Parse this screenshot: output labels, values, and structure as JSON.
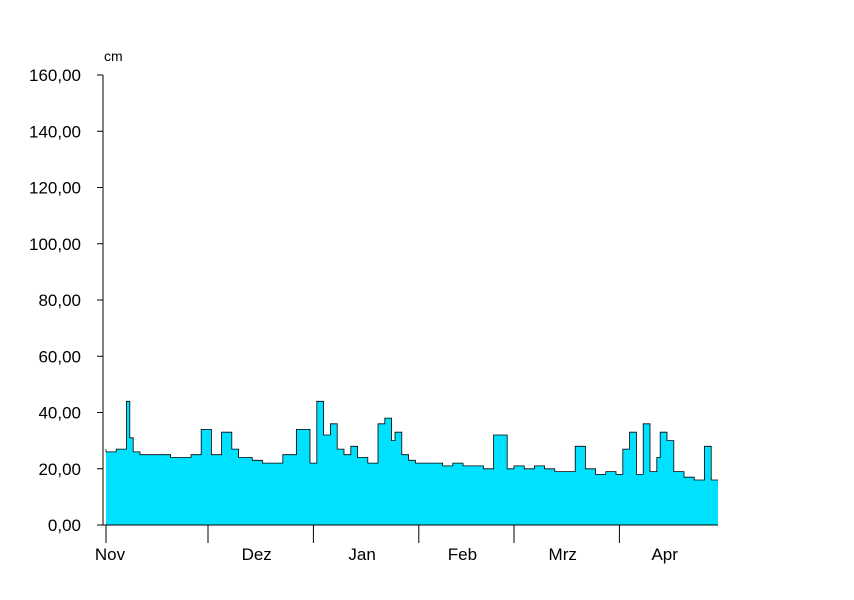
{
  "chart_data": {
    "type": "area",
    "unit": "cm",
    "ylim": [
      0,
      160
    ],
    "y_ticks": [
      {
        "value": 0,
        "label": "0,00"
      },
      {
        "value": 20,
        "label": "20,00"
      },
      {
        "value": 40,
        "label": "40,00"
      },
      {
        "value": 60,
        "label": "60,00"
      },
      {
        "value": 80,
        "label": "80,00"
      },
      {
        "value": 100,
        "label": "100,00"
      },
      {
        "value": 120,
        "label": "120,00"
      },
      {
        "value": 140,
        "label": "140,00"
      },
      {
        "value": 160,
        "label": "160,00"
      }
    ],
    "month_labels": [
      "Nov",
      "Dez",
      "Jan",
      "Feb",
      "Mrz",
      "Apr"
    ],
    "x_start": "2020-11-01",
    "x_end": "2021-04-30",
    "x_boundaries": [
      "2020-11-01",
      "2020-12-01",
      "2021-01-01",
      "2021-02-01",
      "2021-03-01",
      "2021-04-01",
      "2021-05-01"
    ],
    "x": [
      "2020-11-01",
      "2020-11-04",
      "2020-11-07",
      "2020-11-08",
      "2020-11-09",
      "2020-11-11",
      "2020-11-14",
      "2020-11-17",
      "2020-11-20",
      "2020-11-23",
      "2020-11-26",
      "2020-11-29",
      "2020-12-02",
      "2020-12-05",
      "2020-12-08",
      "2020-12-10",
      "2020-12-11",
      "2020-12-14",
      "2020-12-17",
      "2020-12-20",
      "2020-12-23",
      "2020-12-27",
      "2020-12-31",
      "2021-01-02",
      "2021-01-04",
      "2021-01-06",
      "2021-01-08",
      "2021-01-10",
      "2021-01-12",
      "2021-01-14",
      "2021-01-17",
      "2021-01-20",
      "2021-01-22",
      "2021-01-24",
      "2021-01-25",
      "2021-01-27",
      "2021-01-29",
      "2021-01-31",
      "2021-02-02",
      "2021-02-05",
      "2021-02-08",
      "2021-02-11",
      "2021-02-14",
      "2021-02-17",
      "2021-02-20",
      "2021-02-23",
      "2021-02-27",
      "2021-03-01",
      "2021-03-04",
      "2021-03-07",
      "2021-03-10",
      "2021-03-13",
      "2021-03-16",
      "2021-03-19",
      "2021-03-22",
      "2021-03-25",
      "2021-03-28",
      "2021-03-31",
      "2021-04-02",
      "2021-04-04",
      "2021-04-06",
      "2021-04-08",
      "2021-04-10",
      "2021-04-12",
      "2021-04-13",
      "2021-04-15",
      "2021-04-17",
      "2021-04-20",
      "2021-04-23",
      "2021-04-26",
      "2021-04-28",
      "2021-04-30"
    ],
    "values": [
      27,
      26,
      27,
      44,
      31,
      26,
      25,
      25,
      25,
      24,
      24,
      25,
      34,
      25,
      33,
      27,
      24,
      24,
      23,
      22,
      22,
      25,
      34,
      22,
      44,
      32,
      36,
      27,
      25,
      28,
      24,
      22,
      36,
      38,
      30,
      33,
      25,
      23,
      22,
      22,
      22,
      21,
      22,
      21,
      21,
      20,
      32,
      20,
      21,
      20,
      21,
      20,
      19,
      19,
      28,
      20,
      18,
      19,
      18,
      27,
      33,
      18,
      36,
      19,
      24,
      33,
      30,
      19,
      17,
      16,
      28,
      16
    ],
    "grid": false,
    "legend": "none"
  }
}
